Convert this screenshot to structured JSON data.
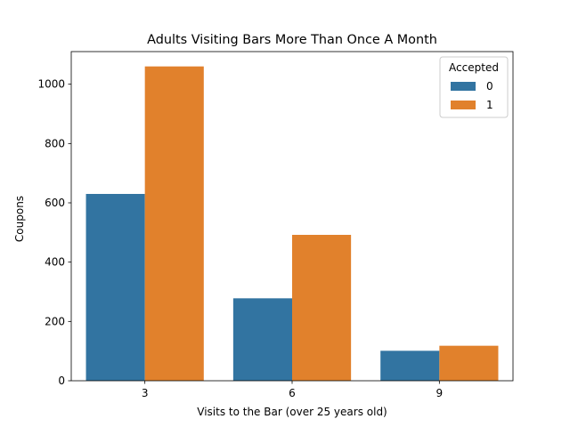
{
  "chart_data": {
    "type": "bar",
    "title": "Adults Visiting Bars More Than Once A Month",
    "xlabel": "Visits to the Bar (over 25 years old)",
    "ylabel": "Coupons",
    "categories": [
      "3",
      "6",
      "9"
    ],
    "ylim": [
      0,
      1110
    ],
    "yticks": [
      0,
      200,
      400,
      600,
      800,
      1000
    ],
    "grid": false,
    "legend": {
      "title": "Accepted",
      "placement": "top-right"
    },
    "series": [
      {
        "name": "0",
        "color": "#3274a1",
        "values": [
          630,
          278,
          101
        ]
      },
      {
        "name": "1",
        "color": "#e1812c",
        "values": [
          1060,
          492,
          118
        ]
      }
    ]
  }
}
